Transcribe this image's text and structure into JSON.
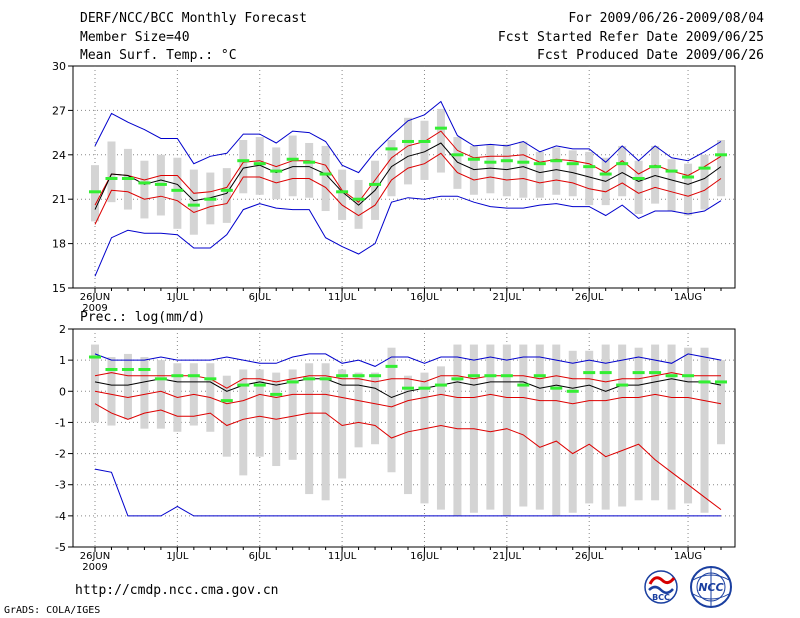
{
  "header": {
    "title": "DERF/NCC/BCC Monthly Forecast",
    "member_size": "Member Size=40",
    "period": "For 2009/06/26-2009/08/04",
    "start_date": "Fcst Started Refer Date 2009/06/25",
    "produced_date": "Fcst Produced Date 2009/06/26"
  },
  "footer": {
    "url": "http://cmdp.ncc.cma.gov.cn",
    "grads": "GrADS: COLA/IGES",
    "logo_bcc_text": "BCC",
    "logo_ncc_text": "NCC"
  },
  "colors": {
    "max_min": "#0000cc",
    "quartile": "#dd0000",
    "mean": "#000000",
    "obs_dash": "#33ee33",
    "box": "#d4d4d4",
    "grid": "#888888"
  },
  "chart_data": [
    {
      "type": "box-plot",
      "title": "Mean Surf. Temp.: °C",
      "ylim": [
        15,
        30
      ],
      "yticks": [
        15,
        18,
        21,
        24,
        27,
        30
      ],
      "x_tick_labels": [
        "26JUN",
        "1JUL",
        "6JUL",
        "11JUL",
        "16JUL",
        "21JUL",
        "26JUL",
        "1AUG"
      ],
      "x_tick_days": [
        0,
        5,
        10,
        15,
        20,
        25,
        30,
        36
      ],
      "year_label": "2009",
      "days": 39,
      "series": {
        "max": [
          24.6,
          26.8,
          26.2,
          25.7,
          25.1,
          25.1,
          23.4,
          23.9,
          24.1,
          25.4,
          25.4,
          24.8,
          25.6,
          25.5,
          24.9,
          23.3,
          22.8,
          24.2,
          25.3,
          26.3,
          26.7,
          27.6,
          25.3,
          24.6,
          24.7,
          24.6,
          24.9,
          24.2,
          24.6,
          24.4,
          24.4,
          23.5,
          24.6,
          23.6,
          24.6,
          23.8,
          23.6,
          24.2,
          24.9
        ],
        "q3": [
          20.6,
          22.7,
          22.6,
          22.3,
          22.6,
          22.6,
          21.4,
          21.5,
          21.8,
          23.5,
          23.6,
          23.2,
          23.6,
          23.6,
          23.3,
          21.6,
          20.8,
          22.3,
          23.8,
          24.6,
          24.9,
          25.6,
          24.3,
          23.8,
          23.9,
          23.9,
          24.0,
          23.5,
          23.7,
          23.6,
          23.4,
          22.8,
          23.6,
          22.7,
          23.3,
          22.9,
          22.6,
          23.2,
          23.9
        ],
        "mean": [
          20.3,
          22.7,
          22.6,
          22.0,
          22.3,
          22.0,
          20.9,
          21.1,
          21.4,
          23.1,
          23.3,
          22.8,
          23.2,
          23.2,
          22.7,
          21.5,
          20.6,
          21.6,
          23.2,
          23.9,
          24.2,
          24.8,
          23.5,
          23.0,
          23.1,
          23.0,
          23.2,
          22.8,
          23.0,
          22.8,
          22.5,
          22.2,
          22.8,
          22.2,
          22.6,
          22.3,
          22.0,
          22.4,
          23.2
        ],
        "q1": [
          19.3,
          21.6,
          21.5,
          21.0,
          21.2,
          20.9,
          20.1,
          20.5,
          20.7,
          22.5,
          22.5,
          22.1,
          22.4,
          22.4,
          21.8,
          20.6,
          19.9,
          20.6,
          22.3,
          23.1,
          23.4,
          24.1,
          22.8,
          22.3,
          22.5,
          22.3,
          22.4,
          22.1,
          22.3,
          22.1,
          21.7,
          21.5,
          22.1,
          21.4,
          21.8,
          21.5,
          21.2,
          21.6,
          22.4
        ],
        "min": [
          15.8,
          18.4,
          18.9,
          18.7,
          18.7,
          18.6,
          17.7,
          17.7,
          18.6,
          20.3,
          20.7,
          20.4,
          20.3,
          20.3,
          18.4,
          17.8,
          17.3,
          18.0,
          20.8,
          21.1,
          21.0,
          21.2,
          21.2,
          20.8,
          20.5,
          20.4,
          20.4,
          20.6,
          20.7,
          20.5,
          20.5,
          19.9,
          20.6,
          19.7,
          20.2,
          20.2,
          20.0,
          20.2,
          20.9
        ],
        "box_top": [
          23.3,
          24.9,
          24.4,
          23.6,
          24.0,
          23.8,
          23.0,
          22.8,
          23.1,
          25.0,
          25.2,
          24.5,
          25.3,
          24.8,
          24.6,
          23.0,
          22.3,
          23.6,
          25.0,
          26.5,
          26.3,
          27.1,
          25.2,
          24.6,
          24.7,
          24.7,
          24.9,
          24.2,
          24.5,
          24.3,
          24.2,
          23.8,
          24.6,
          23.6,
          24.6,
          23.7,
          23.4,
          24.0,
          25.0
        ],
        "box_bottom": [
          19.5,
          20.8,
          20.3,
          19.7,
          19.9,
          19.0,
          18.6,
          19.3,
          19.4,
          21.4,
          21.3,
          21.0,
          21.2,
          21.1,
          20.2,
          19.6,
          19.0,
          19.6,
          21.2,
          22.0,
          22.3,
          22.8,
          21.7,
          21.3,
          21.4,
          21.2,
          21.1,
          21.1,
          21.3,
          21.2,
          20.6,
          20.6,
          21.2,
          20.0,
          20.7,
          20.2,
          19.9,
          20.3,
          21.2
        ],
        "obs": [
          21.5,
          22.4,
          22.4,
          22.1,
          22.0,
          21.6,
          20.6,
          21.0,
          21.6,
          23.6,
          23.4,
          22.9,
          23.7,
          23.5,
          22.7,
          21.5,
          21.0,
          22.0,
          24.4,
          24.9,
          24.9,
          25.8,
          24.0,
          23.7,
          23.5,
          23.6,
          23.5,
          23.4,
          23.6,
          23.4,
          23.2,
          22.7,
          23.4,
          22.4,
          23.2,
          22.9,
          22.5,
          23.1,
          24.0
        ]
      }
    },
    {
      "type": "box-plot",
      "title": "Prec.: log(mm/d)",
      "ylim": [
        -5,
        2
      ],
      "yticks": [
        -5,
        -4,
        -3,
        -2,
        -1,
        0,
        1,
        2
      ],
      "x_tick_labels": [
        "26JUN",
        "1JUL",
        "6JUL",
        "11JUL",
        "16JUL",
        "21JUL",
        "26JUL",
        "1AUG"
      ],
      "x_tick_days": [
        0,
        5,
        10,
        15,
        20,
        25,
        30,
        36
      ],
      "year_label": "2009",
      "days": 39,
      "series": {
        "max": [
          1.2,
          1.0,
          1.0,
          1.0,
          1.1,
          1.0,
          1.0,
          1.0,
          1.1,
          1.0,
          0.9,
          0.9,
          1.1,
          1.2,
          1.2,
          0.9,
          1.0,
          0.8,
          1.1,
          1.1,
          0.9,
          1.1,
          1.1,
          1.0,
          1.1,
          1.0,
          1.1,
          1.1,
          1.0,
          0.9,
          1.0,
          0.9,
          1.0,
          1.1,
          1.0,
          0.9,
          1.2,
          1.1,
          1.0
        ],
        "q3": [
          0.5,
          0.6,
          0.5,
          0.5,
          0.5,
          0.5,
          0.5,
          0.4,
          0.1,
          0.4,
          0.4,
          0.3,
          0.4,
          0.5,
          0.5,
          0.4,
          0.4,
          0.3,
          0.4,
          0.4,
          0.3,
          0.5,
          0.5,
          0.4,
          0.5,
          0.5,
          0.5,
          0.4,
          0.5,
          0.4,
          0.4,
          0.3,
          0.4,
          0.4,
          0.5,
          0.6,
          0.5,
          0.5,
          0.5
        ],
        "mean": [
          0.3,
          0.2,
          0.2,
          0.3,
          0.4,
          0.3,
          0.3,
          0.3,
          0.0,
          0.2,
          0.3,
          0.2,
          0.3,
          0.4,
          0.4,
          0.2,
          0.2,
          0.1,
          -0.2,
          0.0,
          0.1,
          0.2,
          0.3,
          0.2,
          0.3,
          0.3,
          0.3,
          0.1,
          0.2,
          0.1,
          0.2,
          0.0,
          0.2,
          0.2,
          0.3,
          0.4,
          0.3,
          0.3,
          0.2
        ],
        "q1": [
          0.0,
          -0.1,
          -0.2,
          -0.1,
          0.0,
          -0.2,
          -0.1,
          -0.2,
          -0.4,
          -0.3,
          -0.1,
          -0.2,
          -0.1,
          -0.1,
          -0.1,
          -0.2,
          -0.3,
          -0.4,
          -0.5,
          -0.3,
          -0.2,
          -0.1,
          -0.2,
          -0.2,
          -0.1,
          -0.2,
          -0.2,
          -0.3,
          -0.3,
          -0.4,
          -0.3,
          -0.3,
          -0.2,
          -0.2,
          -0.1,
          -0.2,
          -0.2,
          -0.3,
          -0.4
        ],
        "min": [
          -0.4,
          -0.7,
          -0.9,
          -0.7,
          -0.6,
          -0.8,
          -0.8,
          -0.7,
          -1.1,
          -0.9,
          -0.8,
          -0.9,
          -0.8,
          -0.7,
          -0.7,
          -1.1,
          -1.0,
          -1.1,
          -1.5,
          -1.3,
          -1.2,
          -1.1,
          -1.2,
          -1.2,
          -1.3,
          -1.2,
          -1.4,
          -1.8,
          -1.6,
          -2.0,
          -1.7,
          -2.1,
          -1.9,
          -1.7,
          -2.2,
          -2.6,
          -3.0,
          -3.4,
          -3.8
        ],
        "low_min": [
          -2.5,
          -2.6,
          -4.0,
          -4.0,
          -4.0,
          -3.7,
          -4.0,
          -4.0,
          -4.0,
          -4.0,
          -4.0,
          -4.0,
          -4.0,
          -4.0,
          -4.0,
          -4.0,
          -4.0,
          -4.0,
          -4.0,
          -4.0,
          -4.0,
          -4.0,
          -4.0,
          -4.0,
          -4.0,
          -4.0,
          -4.0,
          -4.0,
          -4.0,
          -4.0,
          -4.0,
          -4.0,
          -4.0,
          -4.0,
          -4.0,
          -4.0,
          -4.0,
          -4.0,
          -4.0
        ],
        "box_top": [
          1.5,
          1.1,
          1.2,
          1.1,
          1.0,
          0.9,
          0.9,
          0.9,
          0.5,
          0.7,
          0.7,
          0.6,
          0.7,
          0.9,
          0.9,
          0.7,
          0.6,
          0.6,
          1.4,
          0.5,
          0.6,
          0.8,
          1.5,
          1.5,
          1.5,
          1.5,
          1.5,
          1.5,
          1.5,
          1.3,
          1.3,
          1.5,
          1.5,
          1.4,
          1.5,
          1.5,
          1.4,
          1.4,
          1.0
        ],
        "box_bottom": [
          -1.0,
          -1.1,
          -0.9,
          -1.2,
          -1.2,
          -1.3,
          -1.1,
          -1.3,
          -2.1,
          -2.7,
          -2.1,
          -2.4,
          -2.2,
          -3.3,
          -3.5,
          -2.8,
          -1.8,
          -1.7,
          -2.6,
          -3.3,
          -3.6,
          -3.8,
          -4.0,
          -3.9,
          -3.8,
          -4.0,
          -3.7,
          -3.8,
          -4.0,
          -3.9,
          -3.6,
          -3.8,
          -3.7,
          -3.5,
          -3.5,
          -3.8,
          -3.6,
          -3.9,
          -1.7
        ],
        "obs": [
          1.1,
          0.7,
          0.7,
          0.7,
          0.4,
          0.5,
          0.5,
          0.4,
          -0.3,
          0.2,
          0.2,
          -0.1,
          0.3,
          0.4,
          0.4,
          0.5,
          0.5,
          0.5,
          0.8,
          0.1,
          0.1,
          0.2,
          0.4,
          0.5,
          0.5,
          0.5,
          0.2,
          0.5,
          0.1,
          0.0,
          0.6,
          0.6,
          0.2,
          0.6,
          0.6,
          0.5,
          0.5,
          0.3,
          0.3
        ]
      }
    }
  ]
}
